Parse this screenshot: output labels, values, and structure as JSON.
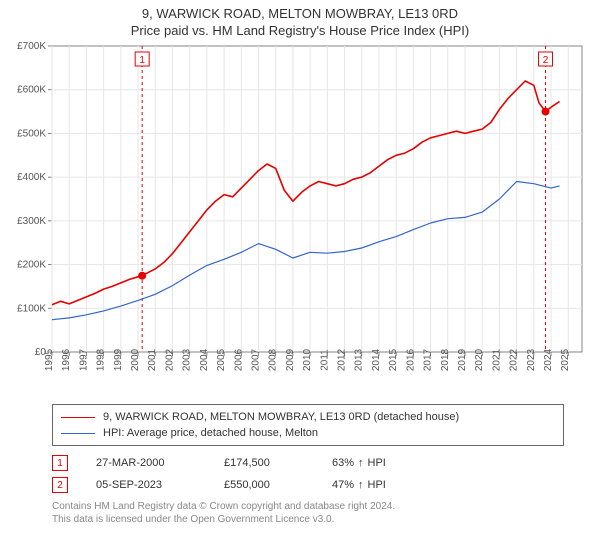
{
  "title": "9, WARWICK ROAD, MELTON MOWBRAY, LE13 0RD",
  "subtitle": "Price paid vs. HM Land Registry's House Price Index (HPI)",
  "chart": {
    "type": "line",
    "background_color": "#ffffff",
    "plot_bg_color": "#ffffff",
    "grid_color": "#e6e6e6",
    "axis_color": "#666666",
    "xlim": [
      1995,
      2025.8
    ],
    "ylim": [
      0,
      700000
    ],
    "ytick_step": 100000,
    "yticks": [
      "£0",
      "£100K",
      "£200K",
      "£300K",
      "£400K",
      "£500K",
      "£600K",
      "£700K"
    ],
    "xticks": [
      1995,
      1996,
      1997,
      1998,
      1999,
      2000,
      2001,
      2002,
      2003,
      2004,
      2005,
      2006,
      2007,
      2008,
      2009,
      2010,
      2011,
      2012,
      2013,
      2014,
      2015,
      2016,
      2017,
      2018,
      2019,
      2020,
      2021,
      2022,
      2023,
      2024,
      2025
    ],
    "series": [
      {
        "name": "property",
        "label": "9, WARWICK ROAD, MELTON MOWBRAY, LE13 0RD (detached house)",
        "color": "#e60000",
        "line_width": 1.6,
        "data": [
          [
            1995,
            108000
          ],
          [
            1995.5,
            116000
          ],
          [
            1996,
            110000
          ],
          [
            1996.5,
            118000
          ],
          [
            1997,
            126000
          ],
          [
            1997.5,
            134000
          ],
          [
            1998,
            144000
          ],
          [
            1998.5,
            150000
          ],
          [
            1999,
            158000
          ],
          [
            1999.5,
            166000
          ],
          [
            2000,
            172000
          ],
          [
            2000.25,
            174500
          ],
          [
            2000.5,
            180000
          ],
          [
            2001,
            190000
          ],
          [
            2001.5,
            205000
          ],
          [
            2002,
            225000
          ],
          [
            2002.5,
            250000
          ],
          [
            2003,
            275000
          ],
          [
            2003.5,
            300000
          ],
          [
            2004,
            325000
          ],
          [
            2004.5,
            345000
          ],
          [
            2005,
            360000
          ],
          [
            2005.5,
            355000
          ],
          [
            2006,
            375000
          ],
          [
            2006.5,
            395000
          ],
          [
            2007,
            415000
          ],
          [
            2007.5,
            430000
          ],
          [
            2008,
            420000
          ],
          [
            2008.5,
            370000
          ],
          [
            2009,
            345000
          ],
          [
            2009.5,
            365000
          ],
          [
            2010,
            380000
          ],
          [
            2010.5,
            390000
          ],
          [
            2011,
            385000
          ],
          [
            2011.5,
            380000
          ],
          [
            2012,
            385000
          ],
          [
            2012.5,
            395000
          ],
          [
            2013,
            400000
          ],
          [
            2013.5,
            410000
          ],
          [
            2014,
            425000
          ],
          [
            2014.5,
            440000
          ],
          [
            2015,
            450000
          ],
          [
            2015.5,
            455000
          ],
          [
            2016,
            465000
          ],
          [
            2016.5,
            480000
          ],
          [
            2017,
            490000
          ],
          [
            2017.5,
            495000
          ],
          [
            2018,
            500000
          ],
          [
            2018.5,
            505000
          ],
          [
            2019,
            500000
          ],
          [
            2019.5,
            505000
          ],
          [
            2020,
            510000
          ],
          [
            2020.5,
            525000
          ],
          [
            2021,
            555000
          ],
          [
            2021.5,
            580000
          ],
          [
            2022,
            600000
          ],
          [
            2022.5,
            620000
          ],
          [
            2023,
            610000
          ],
          [
            2023.3,
            570000
          ],
          [
            2023.68,
            550000
          ],
          [
            2024,
            560000
          ],
          [
            2024.5,
            573000
          ]
        ]
      },
      {
        "name": "hpi",
        "label": "HPI: Average price, detached house, Melton",
        "color": "#3366cc",
        "line_width": 1.2,
        "data": [
          [
            1995,
            74000
          ],
          [
            1996,
            78000
          ],
          [
            1997,
            85000
          ],
          [
            1998,
            94000
          ],
          [
            1999,
            105000
          ],
          [
            2000,
            118000
          ],
          [
            2001,
            132000
          ],
          [
            2002,
            152000
          ],
          [
            2003,
            176000
          ],
          [
            2004,
            198000
          ],
          [
            2005,
            212000
          ],
          [
            2006,
            228000
          ],
          [
            2007,
            248000
          ],
          [
            2008,
            235000
          ],
          [
            2009,
            215000
          ],
          [
            2010,
            228000
          ],
          [
            2011,
            226000
          ],
          [
            2012,
            230000
          ],
          [
            2013,
            238000
          ],
          [
            2014,
            252000
          ],
          [
            2015,
            264000
          ],
          [
            2016,
            280000
          ],
          [
            2017,
            295000
          ],
          [
            2018,
            305000
          ],
          [
            2019,
            308000
          ],
          [
            2020,
            320000
          ],
          [
            2021,
            350000
          ],
          [
            2022,
            390000
          ],
          [
            2023,
            385000
          ],
          [
            2024,
            375000
          ],
          [
            2024.5,
            380000
          ]
        ]
      }
    ],
    "sale_markers": [
      {
        "n": "1",
        "x": 2000.24,
        "y": 174500,
        "color": "#e60000"
      },
      {
        "n": "2",
        "x": 2023.68,
        "y": 550000,
        "color": "#e60000"
      }
    ],
    "vline_color": "#e60000",
    "vline_dash": "3,3"
  },
  "legend": {
    "border_color": "#666666",
    "items": [
      {
        "color": "#e60000",
        "width": 1.8,
        "label": "9, WARWICK ROAD, MELTON MOWBRAY, LE13 0RD (detached house)"
      },
      {
        "color": "#3366cc",
        "width": 1.2,
        "label": "HPI: Average price, detached house, Melton"
      }
    ]
  },
  "sales_table": {
    "rows": [
      {
        "n": "1",
        "marker_color": "#e60000",
        "date": "27-MAR-2000",
        "price": "£174,500",
        "pct": "63%",
        "arrow": "↑",
        "suffix": "HPI"
      },
      {
        "n": "2",
        "marker_color": "#e60000",
        "date": "05-SEP-2023",
        "price": "£550,000",
        "pct": "47%",
        "arrow": "↑",
        "suffix": "HPI"
      }
    ]
  },
  "footer": {
    "line1": "Contains HM Land Registry data © Crown copyright and database right 2024.",
    "line2": "This data is licensed under the Open Government Licence v3.0."
  }
}
